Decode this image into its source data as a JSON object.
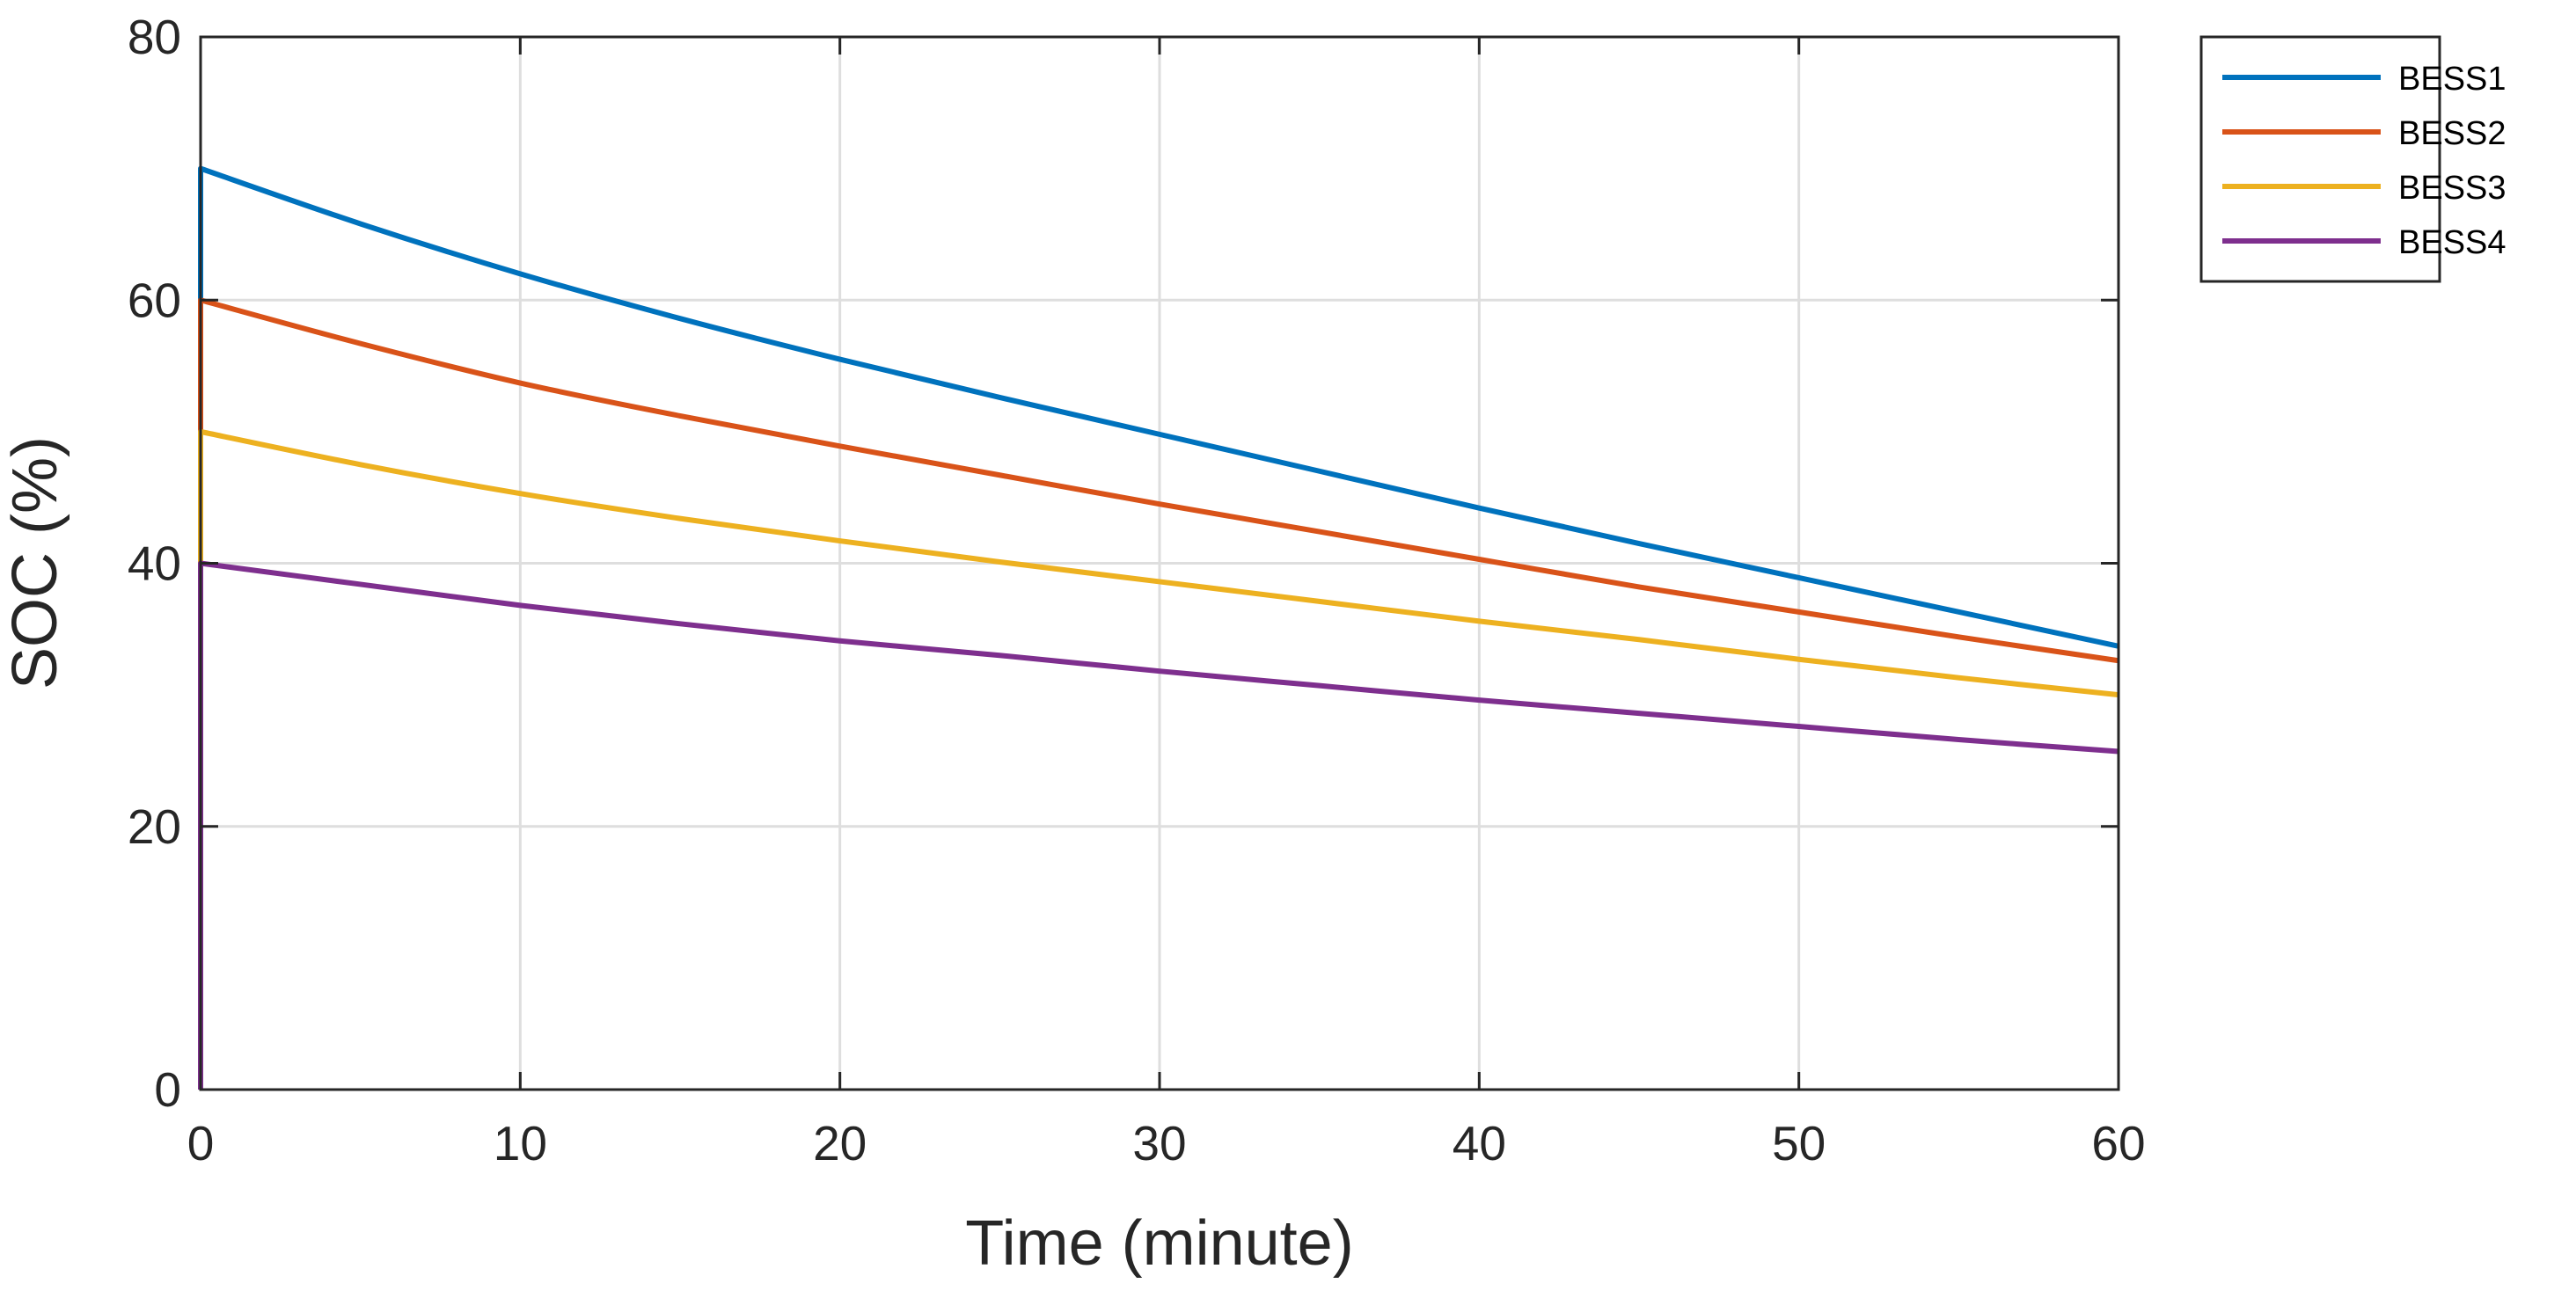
{
  "chart_data": {
    "type": "line",
    "title": "",
    "xlabel": "Time (minute)",
    "ylabel": "SOC (%)",
    "xlim": [
      0,
      60
    ],
    "ylim": [
      0,
      80
    ],
    "xticks": [
      "0",
      "10",
      "20",
      "30",
      "40",
      "50",
      "60"
    ],
    "yticks": [
      "0",
      "20",
      "40",
      "60",
      "80"
    ],
    "grid": true,
    "legend_position": "outside-top-right",
    "x": [
      0,
      5,
      10,
      15,
      20,
      25,
      30,
      35,
      40,
      45,
      50,
      55,
      60
    ],
    "series": [
      {
        "name": "BESS1",
        "color": "#0072BD",
        "start": 0,
        "values": [
          70,
          65.8,
          62.0,
          58.6,
          55.5,
          52.6,
          49.8,
          47.0,
          44.2,
          41.5,
          38.9,
          36.3,
          33.7
        ]
      },
      {
        "name": "BESS2",
        "color": "#D95319",
        "start": 0,
        "values": [
          60,
          56.7,
          53.7,
          51.2,
          48.9,
          46.7,
          44.5,
          42.4,
          40.3,
          38.2,
          36.3,
          34.4,
          32.6
        ]
      },
      {
        "name": "BESS3",
        "color": "#EDB120",
        "start": 40,
        "values": [
          50,
          47.5,
          45.3,
          43.4,
          41.7,
          40.1,
          38.6,
          37.1,
          35.6,
          34.2,
          32.7,
          31.3,
          30.0
        ]
      },
      {
        "name": "BESS4",
        "color": "#7E2F8E",
        "start": 0,
        "values": [
          40,
          38.4,
          36.8,
          35.4,
          34.1,
          33.0,
          31.8,
          30.7,
          29.6,
          28.6,
          27.6,
          26.6,
          25.7
        ]
      }
    ]
  }
}
